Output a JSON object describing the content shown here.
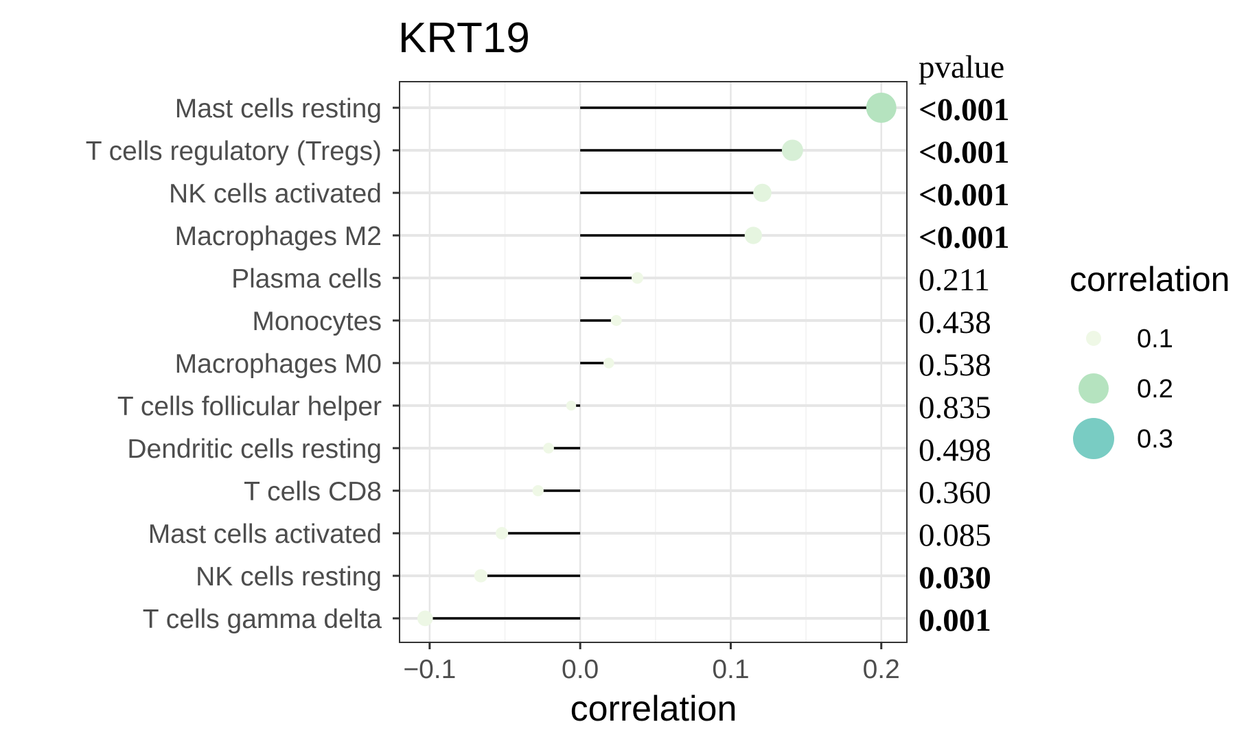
{
  "chart_data": {
    "type": "lollipop",
    "title": "KRT19",
    "xlabel": "correlation",
    "ylabel": "",
    "xlim": [
      -0.12,
      0.217
    ],
    "xticks": [
      -0.1,
      0.0,
      0.1,
      0.2
    ],
    "xtick_labels": [
      "−0.1",
      "0.0",
      "0.1",
      "0.2"
    ],
    "grid": true,
    "pvalue_header": "pvalue",
    "legend": {
      "title": "correlation",
      "position": "right",
      "items": [
        {
          "label": "0.1",
          "value": 0.1,
          "color": "#EFF8E6"
        },
        {
          "label": "0.2",
          "value": 0.2,
          "color": "#B5E3BF"
        },
        {
          "label": "0.3",
          "value": 0.3,
          "color": "#79CCC3"
        }
      ]
    },
    "categories": [
      "Mast cells resting",
      "T cells regulatory (Tregs)",
      "NK cells activated",
      "Macrophages M2",
      "Plasma cells",
      "Monocytes",
      "Macrophages M0",
      "T cells follicular helper",
      "Dendritic cells resting",
      "T cells CD8",
      "Mast cells activated",
      "NK cells resting",
      "T cells gamma delta"
    ],
    "values": [
      0.2,
      0.141,
      0.121,
      0.115,
      0.038,
      0.024,
      0.019,
      -0.006,
      -0.021,
      -0.028,
      -0.052,
      -0.066,
      -0.103
    ],
    "pvalues": [
      "<0.001",
      "<0.001",
      "<0.001",
      "<0.001",
      "0.211",
      "0.438",
      "0.538",
      "0.835",
      "0.498",
      "0.360",
      "0.085",
      "0.030",
      "0.001"
    ],
    "pvalue_bold": [
      true,
      true,
      true,
      true,
      false,
      false,
      false,
      false,
      false,
      false,
      false,
      true,
      true
    ]
  }
}
